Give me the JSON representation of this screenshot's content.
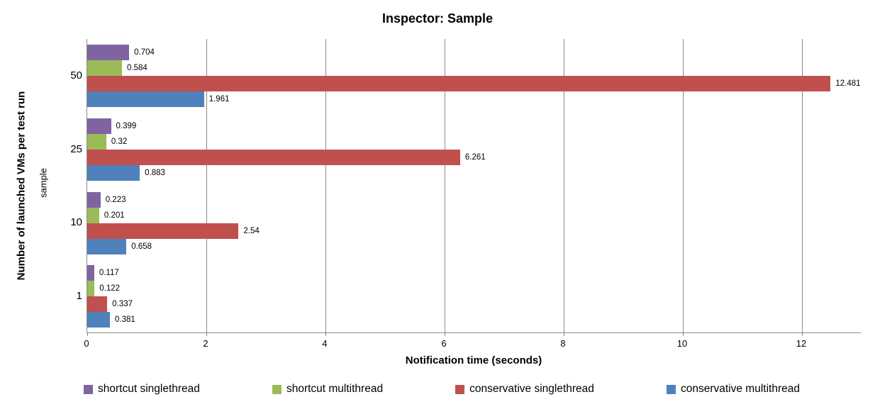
{
  "chart": {
    "title": "Inspector: Sample",
    "x_axis_title": "Notification time (seconds)",
    "y_axis_title": "Number of launched VMs per test run",
    "y_axis_subtitle": "sample"
  },
  "chart_data": {
    "type": "bar",
    "orientation": "horizontal",
    "title": "Inspector: Sample",
    "xlabel": "Notification time (seconds)",
    "ylabel": "Number of launched VMs per test run",
    "ylabel_secondary": "sample",
    "categories": [
      "50",
      "25",
      "10",
      "1"
    ],
    "categories_order": "top-to-bottom",
    "series": [
      {
        "name": "shortcut singlethread",
        "color": "#8064A2",
        "values": [
          0.704,
          0.399,
          0.223,
          0.117
        ]
      },
      {
        "name": "shortcut multithread",
        "color": "#9BBB59",
        "values": [
          0.584,
          0.32,
          0.201,
          0.122
        ]
      },
      {
        "name": "conservative singlethread",
        "color": "#C0504D",
        "values": [
          12.481,
          6.261,
          2.54,
          0.337
        ]
      },
      {
        "name": "conservative multithread",
        "color": "#4F81BD",
        "values": [
          1.961,
          0.883,
          0.658,
          0.381
        ]
      }
    ],
    "xlim": [
      0,
      13
    ],
    "x_ticks": [
      0,
      2,
      4,
      6,
      8,
      10,
      12
    ],
    "grid": true,
    "gridline_color": "#8a8a8a",
    "value_labels_shown": true,
    "legend_position": "bottom"
  }
}
